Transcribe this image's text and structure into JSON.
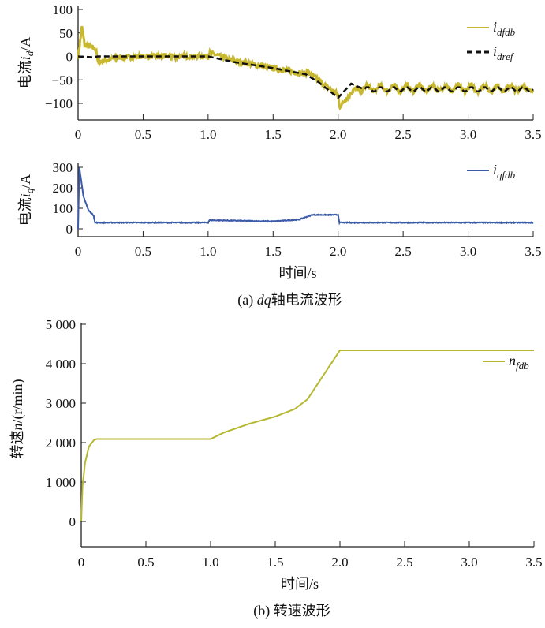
{
  "chart_data": [
    {
      "type": "line",
      "ylabel": "电流i_d/A",
      "ylabel_parts": [
        "电流",
        "i",
        "d",
        "/A"
      ],
      "xlim": [
        0,
        3.5
      ],
      "ylim": [
        -130,
        100
      ],
      "yticks": [
        100,
        50,
        0,
        -50,
        -100
      ],
      "ytick_labels": [
        "100",
        "50",
        "0",
        "−50",
        "−100"
      ],
      "xticks": [
        0,
        0.5,
        1,
        1.5,
        2,
        2.5,
        3,
        3.5
      ],
      "xtick_labels": [
        "0",
        "0.5",
        "1.0",
        "1.5",
        "2.0",
        "2.5",
        "3.0",
        "3.5"
      ],
      "legend": "top-right",
      "series": [
        {
          "name": "i_dfdb",
          "label_main": "i",
          "label_sub": "dfdb",
          "color": "#c8b830",
          "noise": 5,
          "x": [
            0,
            0.03,
            0.05,
            0.14,
            0.15,
            0.3,
            0.5,
            1.0,
            1.01,
            1.2,
            1.5,
            1.75,
            1.76,
            2.0,
            2.01,
            2.12,
            2.2,
            3.5
          ],
          "y": [
            0,
            62,
            25,
            15,
            -12,
            -3,
            0,
            0,
            8,
            -10,
            -25,
            -38,
            -32,
            -82,
            -108,
            -70,
            -68,
            -68
          ]
        },
        {
          "name": "i_dref",
          "label_main": "i",
          "label_sub": "dref",
          "color": "#111111",
          "dashed": true,
          "x": [
            0,
            0.12,
            0.15,
            1.0,
            1.2,
            1.5,
            1.75,
            1.85,
            2.0,
            2.1,
            2.2,
            3.5
          ],
          "y": [
            0,
            -2,
            0,
            0,
            -12,
            -25,
            -38,
            -55,
            -88,
            -58,
            -70,
            -70
          ]
        }
      ]
    },
    {
      "type": "line",
      "ylabel": "电流i_q/A",
      "ylabel_parts": [
        "电流",
        "i",
        "q",
        "/A"
      ],
      "xlim": [
        0,
        3.5
      ],
      "ylim": [
        -40,
        320
      ],
      "yticks": [
        300,
        200,
        100,
        0
      ],
      "ytick_labels": [
        "300",
        "200",
        "100",
        "0"
      ],
      "xticks": [
        0,
        0.5,
        1,
        1.5,
        2,
        2.5,
        3,
        3.5
      ],
      "xtick_labels": [
        "0",
        "0.5",
        "1.0",
        "1.5",
        "2.0",
        "2.5",
        "3.0",
        "3.5"
      ],
      "xlabel": "时间/s",
      "caption": "(a) dq轴电流波形",
      "caption_parts": [
        "(a) ",
        "dq",
        "轴电流波形"
      ],
      "legend": "top-right",
      "series": [
        {
          "name": "i_qfdb",
          "label_main": "i",
          "label_sub": "qfdb",
          "color": "#3b5aa8",
          "noise": 2,
          "x": [
            0,
            0.01,
            0.04,
            0.08,
            0.12,
            0.13,
            1.0,
            1.01,
            1.5,
            1.7,
            1.8,
            2.0,
            2.01,
            3.5
          ],
          "y": [
            0,
            300,
            160,
            90,
            65,
            30,
            30,
            42,
            36,
            45,
            68,
            68,
            30,
            30
          ]
        }
      ]
    },
    {
      "type": "line",
      "ylabel": "转速n/(r/min)",
      "ylabel_parts": [
        "转速",
        "n",
        "/(r/min)"
      ],
      "xlim": [
        0,
        3.5
      ],
      "ylim": [
        -800,
        5000
      ],
      "yticks": [
        5000,
        4000,
        3000,
        2000,
        1000,
        0
      ],
      "ytick_labels": [
        "5 000",
        "4 000",
        "3 000",
        "2 000",
        "1 000",
        "0"
      ],
      "xticks": [
        0,
        0.5,
        1,
        1.5,
        2,
        2.5,
        3,
        3.5
      ],
      "xtick_labels": [
        "0",
        "0.5",
        "1.0",
        "1.5",
        "2.0",
        "2.5",
        "3.0",
        "3.5"
      ],
      "xlabel": "时间/s",
      "caption": "(b) 转速波形",
      "legend": "top-right",
      "series": [
        {
          "name": "n_fdb",
          "label_main": "n",
          "label_sub": "fdb",
          "color": "#b5b830",
          "noise": 0,
          "x": [
            0,
            0.01,
            0.03,
            0.06,
            0.1,
            0.12,
            1.0,
            1.1,
            1.3,
            1.5,
            1.65,
            1.75,
            1.8,
            2.0,
            3.5
          ],
          "y": [
            0,
            900,
            1500,
            1900,
            2070,
            2090,
            2090,
            2250,
            2480,
            2660,
            2850,
            3100,
            3350,
            4340,
            4340
          ]
        }
      ]
    }
  ]
}
